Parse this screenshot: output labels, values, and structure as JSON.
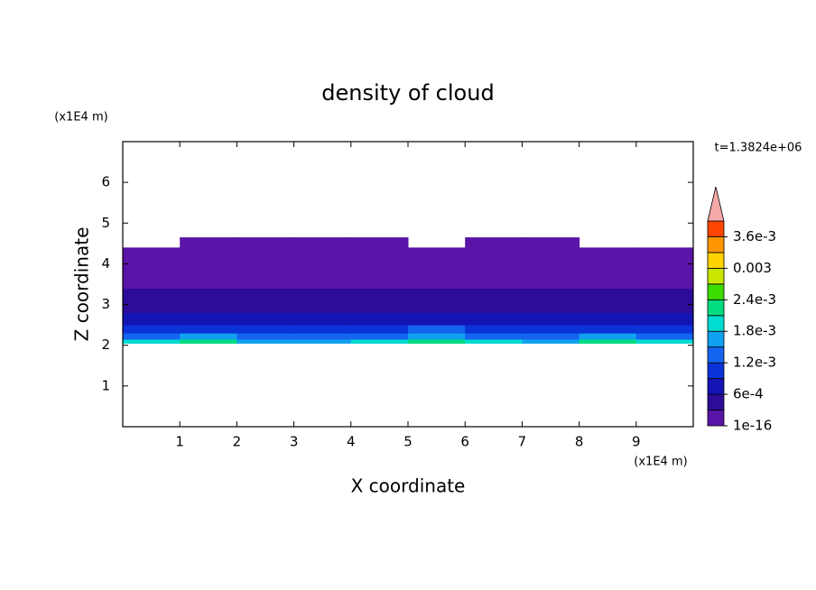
{
  "chart_data": {
    "type": "contour",
    "title": "density of cloud",
    "x_label": "X coordinate",
    "y_label": "Z coordinate",
    "x_unit": "(x1E4 m)",
    "y_unit": "(x1E4 m)",
    "time_label": "t=1.3824e+06",
    "xlim": [
      0,
      10
    ],
    "ylim": [
      0,
      7
    ],
    "xticks": [
      1,
      2,
      3,
      4,
      5,
      6,
      7,
      8,
      9
    ],
    "yticks": [
      1,
      2,
      3,
      4,
      5,
      6
    ],
    "x_edges": [
      0,
      1,
      2,
      3,
      4,
      5,
      6,
      7,
      8,
      9,
      10
    ],
    "z_edges": [
      2.05,
      2.15,
      2.3,
      2.5,
      2.8,
      3.1,
      3.4,
      3.8,
      4.1,
      4.4,
      4.65
    ],
    "values": [
      [
        0.0019,
        0.0022,
        0.0017,
        0.0016,
        0.0018,
        0.0021,
        0.0019,
        0.0017,
        0.0022,
        0.0019
      ],
      [
        0.0013,
        0.0015,
        0.0012,
        0.0012,
        0.0014,
        0.0016,
        0.0013,
        0.0012,
        0.0015,
        0.0014
      ],
      [
        0.001,
        0.0011,
        0.0009,
        0.001,
        0.0011,
        0.0012,
        0.001,
        0.0009,
        0.0011,
        0.001
      ],
      [
        0.0007,
        0.0008,
        0.0006,
        0.0007,
        0.0007,
        0.0008,
        0.0007,
        0.0006,
        0.0008,
        0.0007
      ],
      [
        0.0004,
        0.0005,
        0.0004,
        0.0004,
        0.0005,
        0.0005,
        0.0004,
        0.0004,
        0.0005,
        0.0004
      ],
      [
        0.00035,
        0.0004,
        0.00035,
        0.00035,
        0.00035,
        0.0004,
        0.00035,
        0.00035,
        0.0004,
        0.00035
      ],
      [
        0.0002,
        0.00025,
        0.0001,
        0.0002,
        0.0002,
        0.00025,
        0.0002,
        0.0002,
        0.00025,
        0.0002
      ],
      [
        0.0001,
        0.0001,
        0.0001,
        0.0001,
        0.0001,
        0.0001,
        0.0001,
        0.0001,
        0.0001,
        0.0001
      ],
      [
        5e-05,
        5e-05,
        5e-05,
        5e-05,
        5e-05,
        5e-05,
        5e-05,
        5e-05,
        5e-05,
        5e-05
      ],
      [
        null,
        2e-05,
        2e-05,
        1e-05,
        1e-05,
        null,
        2e-05,
        1e-05,
        null,
        null
      ]
    ],
    "levels": [
      1e-16,
      0.0003,
      0.0006,
      0.0009,
      0.0012,
      0.0015,
      0.0018,
      0.0021,
      0.0024,
      0.0027,
      0.003,
      0.0033,
      0.0036,
      0.0039
    ],
    "colormap": [
      "#5a14a8",
      "#2c0c98",
      "#1414b4",
      "#0a34d8",
      "#1464f0",
      "#10a0f0",
      "#00dcd0",
      "#00dc80",
      "#3cdc00",
      "#c8e600",
      "#ffd200",
      "#ff9600",
      "#ff4600"
    ],
    "overflow_color": "#f4a8a8",
    "cbar_ticks": [
      1e-16,
      {
        "value": 0.0006,
        "label": "6e-4"
      },
      {
        "value": 0.0012,
        "label": "1.2e-3"
      },
      {
        "value": 0.0018,
        "label": "1.8e-3"
      },
      {
        "value": 0.0024,
        "label": "2.4e-3"
      },
      0.003,
      {
        "value": 0.0036,
        "label": "3.6e-3"
      }
    ]
  }
}
